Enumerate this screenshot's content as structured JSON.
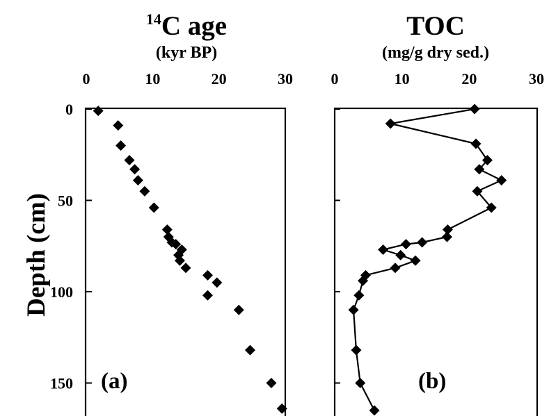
{
  "chart_data": [
    {
      "type": "scatter",
      "panel_label": "(a)",
      "title_superscript": "14",
      "title": "C age",
      "xlabel": "(kyr BP)",
      "ylabel": "Depth (cm)",
      "xlim": [
        0,
        30
      ],
      "ylim": [
        0,
        170
      ],
      "y_inverted": true,
      "x_ticks": [
        "0",
        "10",
        "20",
        "30"
      ],
      "y_ticks": [
        "0",
        "50",
        "100",
        "150"
      ],
      "marker": "diamond",
      "color": "#000000",
      "points": [
        {
          "x": 1.8,
          "y": 1
        },
        {
          "x": 4.8,
          "y": 9
        },
        {
          "x": 5.2,
          "y": 20
        },
        {
          "x": 6.5,
          "y": 28
        },
        {
          "x": 7.3,
          "y": 33
        },
        {
          "x": 7.8,
          "y": 39
        },
        {
          "x": 8.8,
          "y": 45
        },
        {
          "x": 10.2,
          "y": 54
        },
        {
          "x": 12.2,
          "y": 66
        },
        {
          "x": 12.4,
          "y": 70
        },
        {
          "x": 12.9,
          "y": 73
        },
        {
          "x": 13.5,
          "y": 74
        },
        {
          "x": 14.4,
          "y": 77
        },
        {
          "x": 13.9,
          "y": 80
        },
        {
          "x": 14.1,
          "y": 83
        },
        {
          "x": 15.0,
          "y": 87
        },
        {
          "x": 18.3,
          "y": 91
        },
        {
          "x": 19.7,
          "y": 95
        },
        {
          "x": 18.3,
          "y": 102
        },
        {
          "x": 23.0,
          "y": 110
        },
        {
          "x": 24.7,
          "y": 132
        },
        {
          "x": 27.9,
          "y": 150
        },
        {
          "x": 29.5,
          "y": 164
        }
      ]
    },
    {
      "type": "line",
      "panel_label": "(b)",
      "title": "TOC",
      "xlabel": "(mg/g dry sed.)",
      "xlim": [
        0,
        30
      ],
      "ylim": [
        0,
        170
      ],
      "y_inverted": true,
      "x_ticks": [
        "0",
        "10",
        "20",
        "30"
      ],
      "marker": "diamond",
      "color": "#000000",
      "points": [
        {
          "x": 20.8,
          "y": 0
        },
        {
          "x": 8.3,
          "y": 8
        },
        {
          "x": 21.0,
          "y": 19
        },
        {
          "x": 22.7,
          "y": 28
        },
        {
          "x": 21.5,
          "y": 33
        },
        {
          "x": 24.8,
          "y": 39
        },
        {
          "x": 21.2,
          "y": 45
        },
        {
          "x": 23.3,
          "y": 54
        },
        {
          "x": 16.8,
          "y": 66
        },
        {
          "x": 16.7,
          "y": 70
        },
        {
          "x": 13.0,
          "y": 73
        },
        {
          "x": 10.6,
          "y": 74
        },
        {
          "x": 7.2,
          "y": 77
        },
        {
          "x": 9.8,
          "y": 80
        },
        {
          "x": 12.0,
          "y": 83
        },
        {
          "x": 9.0,
          "y": 87
        },
        {
          "x": 4.6,
          "y": 91
        },
        {
          "x": 4.2,
          "y": 94
        },
        {
          "x": 3.6,
          "y": 102
        },
        {
          "x": 2.8,
          "y": 110
        },
        {
          "x": 3.2,
          "y": 132
        },
        {
          "x": 3.8,
          "y": 150
        },
        {
          "x": 5.9,
          "y": 165
        }
      ]
    }
  ]
}
